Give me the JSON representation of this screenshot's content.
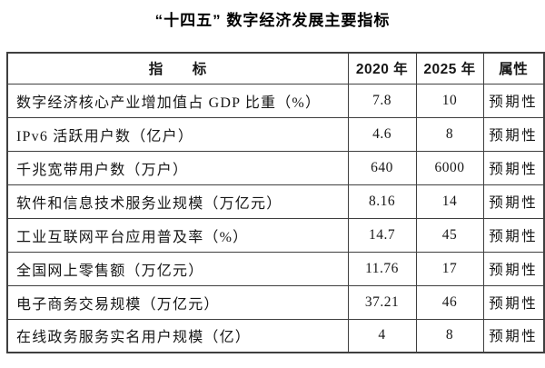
{
  "page": {
    "title": "“十四五” 数字经济发展主要指标"
  },
  "colors": {
    "border": "#3f3f3f",
    "text": "#161616",
    "background": "#ffffff"
  },
  "table": {
    "columns": [
      {
        "key": "indicator",
        "label": "指　　标"
      },
      {
        "key": "y2020",
        "label": "2020 年"
      },
      {
        "key": "y2025",
        "label": "2025 年"
      },
      {
        "key": "attr",
        "label": "属性"
      }
    ],
    "rows": [
      {
        "indicator": "数字经济核心产业增加值占 GDP 比重（%）",
        "y2020": "7.8",
        "y2025": "10",
        "attr": "预期性"
      },
      {
        "indicator": "IPv6 活跃用户数（亿户）",
        "y2020": "4.6",
        "y2025": "8",
        "attr": "预期性"
      },
      {
        "indicator": "千兆宽带用户数（万户）",
        "y2020": "640",
        "y2025": "6000",
        "attr": "预期性"
      },
      {
        "indicator": "软件和信息技术服务业规模（万亿元）",
        "y2020": "8.16",
        "y2025": "14",
        "attr": "预期性"
      },
      {
        "indicator": "工业互联网平台应用普及率（%）",
        "y2020": "14.7",
        "y2025": "45",
        "attr": "预期性"
      },
      {
        "indicator": "全国网上零售额（万亿元）",
        "y2020": "11.76",
        "y2025": "17",
        "attr": "预期性"
      },
      {
        "indicator": "电子商务交易规模（万亿元）",
        "y2020": "37.21",
        "y2025": "46",
        "attr": "预期性"
      },
      {
        "indicator": "在线政务服务实名用户规模（亿）",
        "y2020": "4",
        "y2025": "8",
        "attr": "预期性"
      }
    ]
  }
}
